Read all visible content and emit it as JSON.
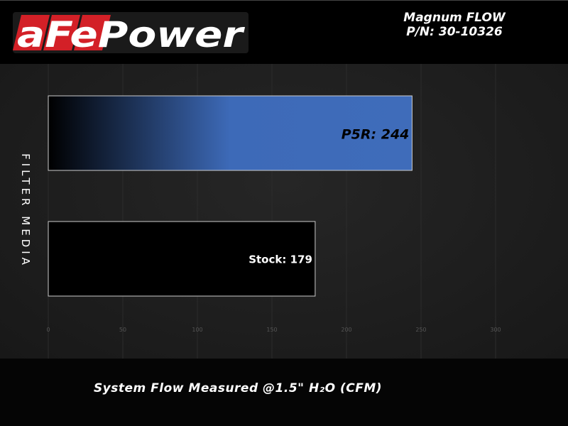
{
  "header": {
    "brand": "aFePower",
    "title_line1": "Magnum FLOW",
    "title_line2": "P/N: 30-10326"
  },
  "chart_data": {
    "type": "bar",
    "orientation": "horizontal",
    "categories": [
      "P5R",
      "Stock"
    ],
    "values": [
      244,
      179
    ],
    "data_labels": [
      "P5R: 244",
      "Stock: 179"
    ],
    "xlabel": "System Flow Measured @1.5\" H₂O (CFM)",
    "ylabel": "FILTER MEDIA",
    "xlim": [
      0,
      300
    ],
    "xticks": [
      "0",
      "50",
      "100",
      "150",
      "200",
      "250",
      "300"
    ],
    "grid": "vertical",
    "colors": {
      "P5R_start": "#000000",
      "P5R_end": "#3d6ab8",
      "Stock": "#000000",
      "bar_border": "#cccccc"
    }
  }
}
